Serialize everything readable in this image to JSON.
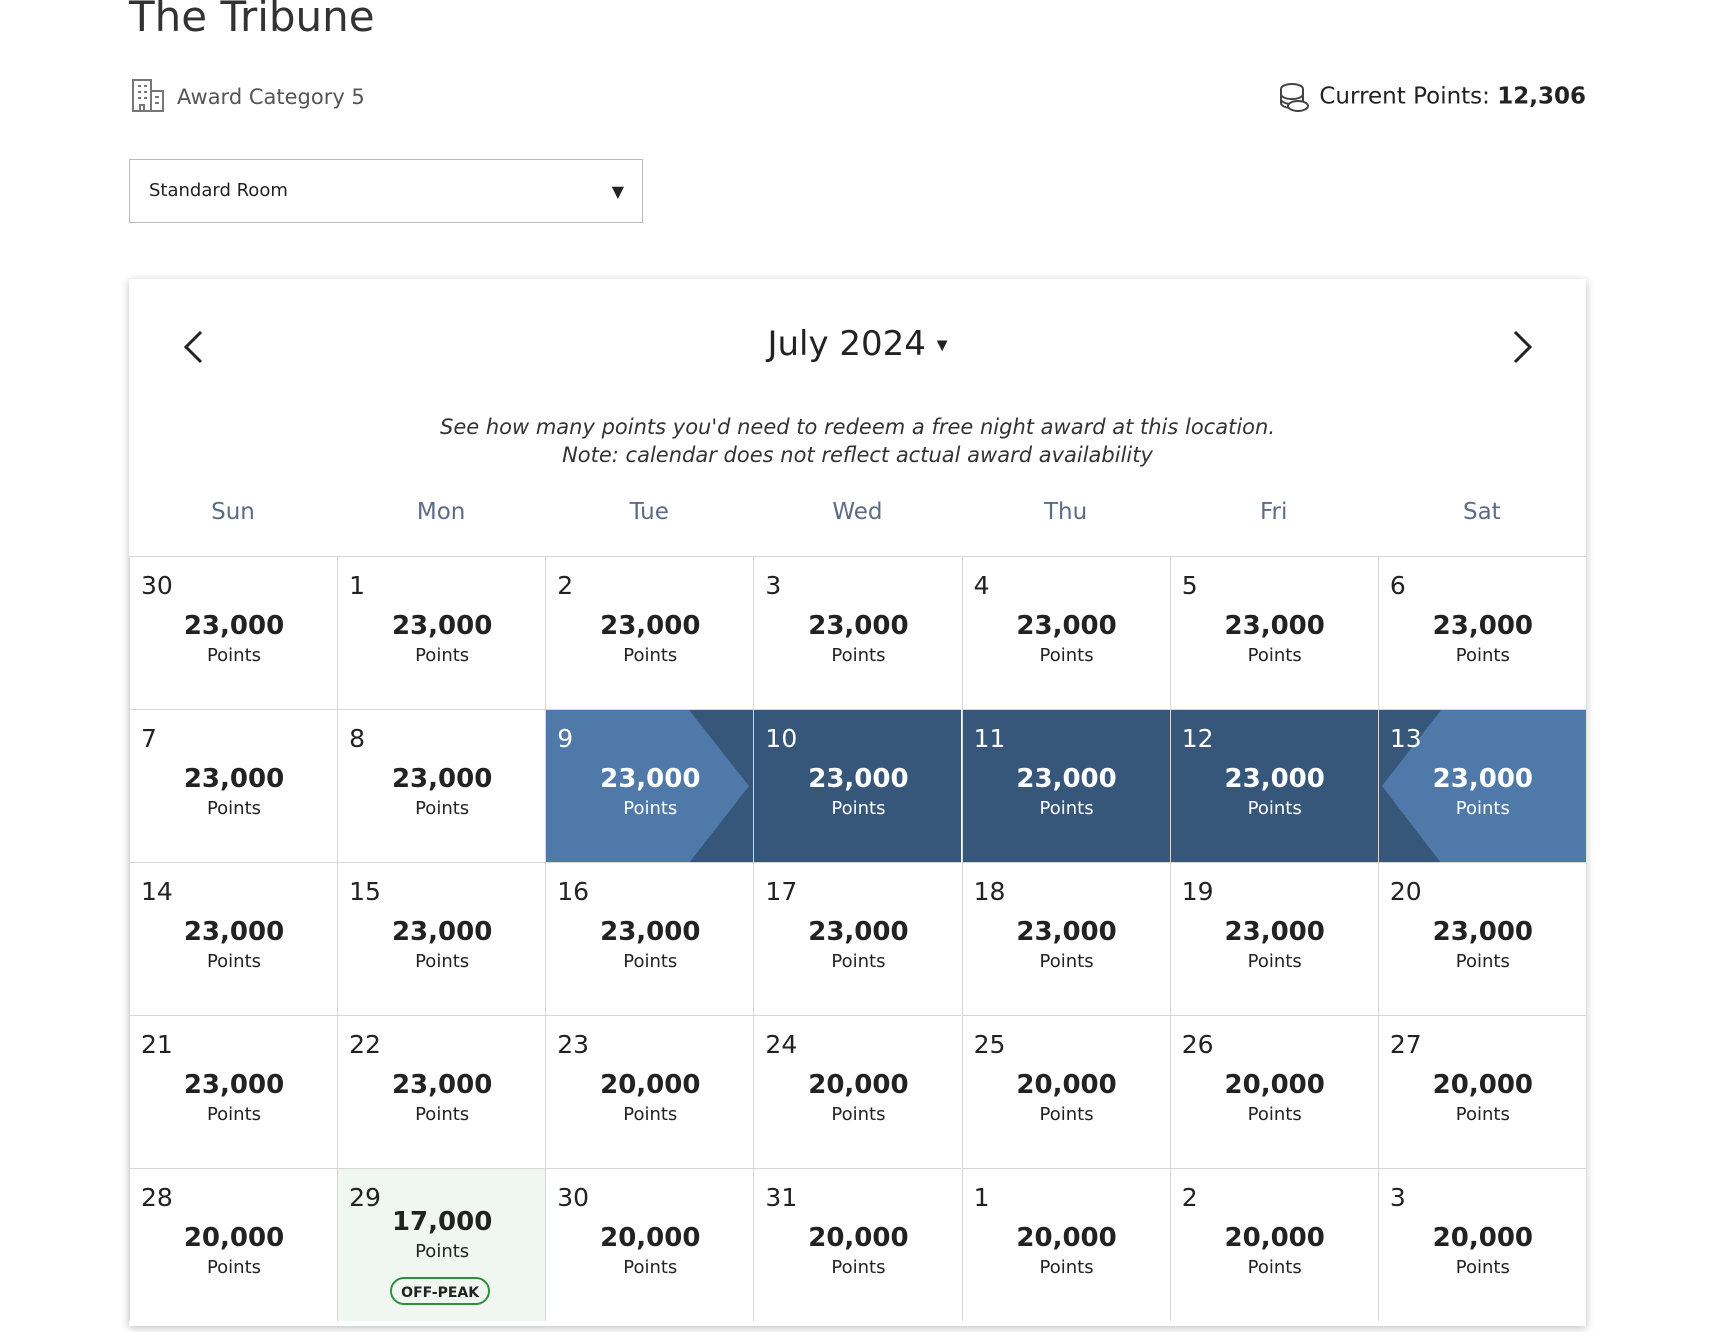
{
  "header": {
    "title": "The Tribune",
    "award_category": "Award Category 5",
    "current_points_label": "Current Points:",
    "current_points_value": "12,306"
  },
  "room_select": {
    "value": "Standard Room"
  },
  "calendar": {
    "month": "July 2024",
    "note": "See how many points you'd need to redeem a free night award at this location. Note: calendar does not reflect actual award availability",
    "weekdays": [
      "Sun",
      "Mon",
      "Tue",
      "Wed",
      "Thu",
      "Fri",
      "Sat"
    ],
    "points_unit": "Points",
    "weeks": [
      [
        {
          "day": "30",
          "points": "23,000"
        },
        {
          "day": "1",
          "points": "23,000"
        },
        {
          "day": "2",
          "points": "23,000"
        },
        {
          "day": "3",
          "points": "23,000"
        },
        {
          "day": "4",
          "points": "23,000"
        },
        {
          "day": "5",
          "points": "23,000"
        },
        {
          "day": "6",
          "points": "23,000"
        }
      ],
      [
        {
          "day": "7",
          "points": "23,000"
        },
        {
          "day": "8",
          "points": "23,000"
        },
        {
          "day": "9",
          "points": "23,000"
        },
        {
          "day": "10",
          "points": "23,000"
        },
        {
          "day": "11",
          "points": "23,000"
        },
        {
          "day": "12",
          "points": "23,000"
        },
        {
          "day": "13",
          "points": "23,000"
        }
      ],
      [
        {
          "day": "14",
          "points": "23,000"
        },
        {
          "day": "15",
          "points": "23,000"
        },
        {
          "day": "16",
          "points": "23,000"
        },
        {
          "day": "17",
          "points": "23,000"
        },
        {
          "day": "18",
          "points": "23,000"
        },
        {
          "day": "19",
          "points": "23,000"
        },
        {
          "day": "20",
          "points": "23,000"
        }
      ],
      [
        {
          "day": "21",
          "points": "23,000"
        },
        {
          "day": "22",
          "points": "23,000"
        },
        {
          "day": "23",
          "points": "20,000"
        },
        {
          "day": "24",
          "points": "20,000"
        },
        {
          "day": "25",
          "points": "20,000"
        },
        {
          "day": "26",
          "points": "20,000"
        },
        {
          "day": "27",
          "points": "20,000"
        }
      ],
      [
        {
          "day": "28",
          "points": "20,000"
        },
        {
          "day": "29",
          "points": "17,000",
          "badge": "OFF-PEAK"
        },
        {
          "day": "30",
          "points": "20,000"
        },
        {
          "day": "31",
          "points": "20,000"
        },
        {
          "day": "1",
          "points": "20,000"
        },
        {
          "day": "2",
          "points": "20,000"
        },
        {
          "day": "3",
          "points": "20,000"
        }
      ]
    ]
  }
}
